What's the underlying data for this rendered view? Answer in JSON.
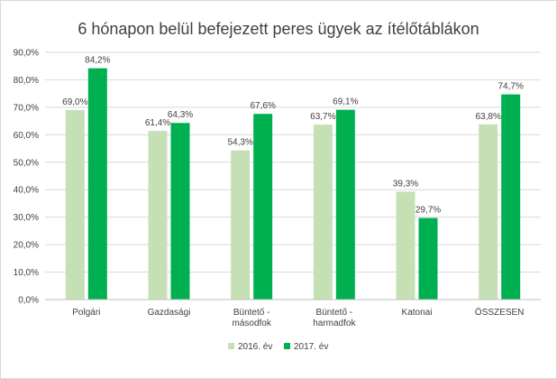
{
  "chart_data": {
    "type": "bar",
    "title": "6 hónapon belül befejezett peres ügyek az ítélőtáblákon",
    "categories": [
      [
        "Polgári"
      ],
      [
        "Gazdasági"
      ],
      [
        "Büntető -",
        "másodfok"
      ],
      [
        "Büntető -",
        "harmadfok"
      ],
      [
        "Katonai"
      ],
      [
        "ÖSSZESEN"
      ]
    ],
    "series": [
      {
        "name": "2016. év",
        "color": "#c5e0b4",
        "values": [
          69.0,
          61.4,
          54.3,
          63.7,
          39.3,
          63.8
        ],
        "labels": [
          "69,0%",
          "61,4%",
          "54,3%",
          "63,7%",
          "39,3%",
          "63,8%"
        ]
      },
      {
        "name": "2017. év",
        "color": "#00b050",
        "values": [
          84.2,
          64.3,
          67.6,
          69.1,
          29.7,
          74.7
        ],
        "labels": [
          "84,2%",
          "64,3%",
          "67,6%",
          "69,1%",
          "29,7%",
          "74,7%"
        ]
      }
    ],
    "ylim": [
      0,
      90
    ],
    "yticks": [
      0,
      10,
      20,
      30,
      40,
      50,
      60,
      70,
      80,
      90
    ],
    "ytick_labels": [
      "0,0%",
      "10,0%",
      "20,0%",
      "30,0%",
      "40,0%",
      "50,0%",
      "60,0%",
      "70,0%",
      "80,0%",
      "90,0%"
    ],
    "grid": true,
    "legend_position": "bottom"
  }
}
